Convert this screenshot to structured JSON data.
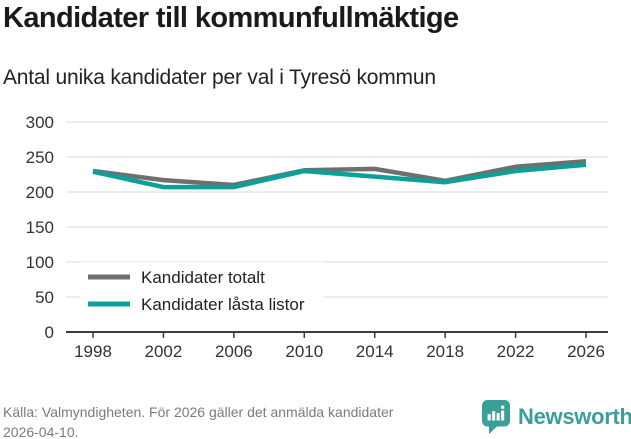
{
  "header": {
    "title": "Kandidater till kommunfullmäktige",
    "subtitle": "Antal unika kandidater per val i Tyresö kommun"
  },
  "chart_data": {
    "type": "line",
    "title": "Kandidater till kommunfullmäktige",
    "subtitle": "Antal unika kandidater per val i Tyresö kommun",
    "x": [
      1998,
      2002,
      2006,
      2010,
      2014,
      2018,
      2022,
      2026
    ],
    "series": [
      {
        "name": "Kandidater totalt",
        "color": "#6f6f6f",
        "values": [
          230,
          217,
          210,
          231,
          233,
          216,
          236,
          244
        ]
      },
      {
        "name": "Kandidater låsta listor",
        "color": "#0ba099",
        "values": [
          229,
          207,
          207,
          230,
          222,
          214,
          230,
          239
        ]
      }
    ],
    "xlabel": "",
    "ylabel": "",
    "ylim": [
      0,
      300
    ],
    "ytick_step": 50,
    "grid": true,
    "legend_position": "inside-bottom-left",
    "colors": {
      "grid": "#e2e2e2",
      "axis": "#3c3c3c",
      "tick_label": "#333333",
      "legend_text": "#222222",
      "legend_background": "#ffffff"
    }
  },
  "footer": {
    "source": "Källa: Valmyndigheten. För 2026 gäller det anmälda kandidater 2026-04-10.",
    "brand": "Newsworthy",
    "brand_color": "#3a9f99"
  }
}
